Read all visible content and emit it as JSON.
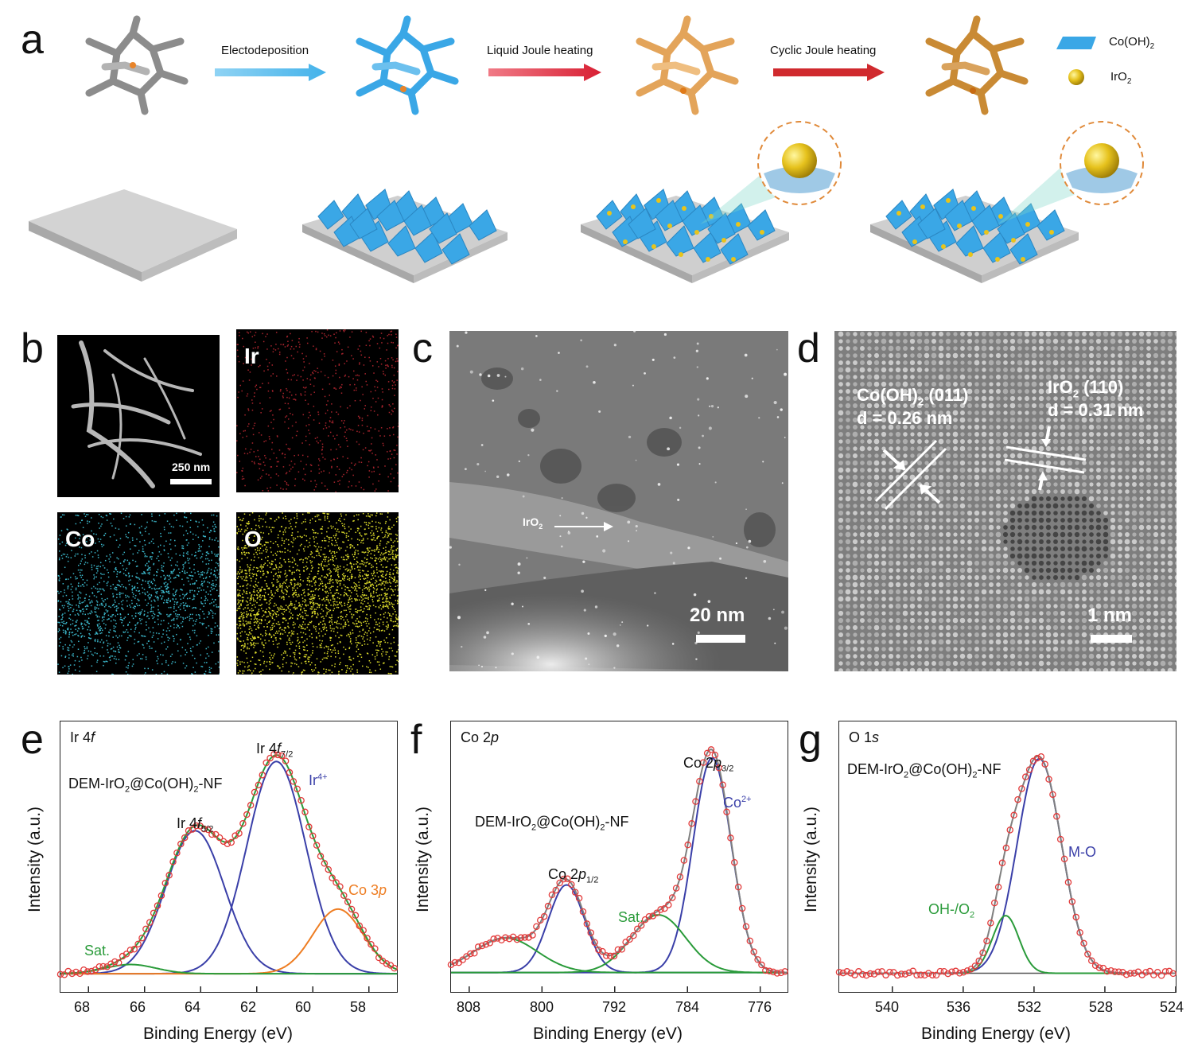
{
  "panels": {
    "a": "a",
    "b": "b",
    "c": "c",
    "d": "d",
    "e": "e",
    "f": "f",
    "g": "g"
  },
  "scheme": {
    "steps": [
      "Electodeposition",
      "Liquid Joule heating",
      "Cyclic Joule heating"
    ],
    "legend_cooh": "Co(OH)",
    "legend_cooh_sub": "2",
    "legend_iro2": "IrO",
    "legend_iro2_sub": "2"
  },
  "eds": {
    "scale": "250 nm",
    "ir": "Ir",
    "co": "Co",
    "o": "O"
  },
  "stem": {
    "label": "IrO",
    "label_sub": "2",
    "scale": "20 nm"
  },
  "hrtem": {
    "cooh_label": "Co(OH)",
    "cooh_sub": "2",
    "cooh_plane": " (011)",
    "cooh_d": "d = 0.26 nm",
    "iro2_label": "IrO",
    "iro2_sub": "2",
    "iro2_plane": " (110)",
    "iro2_d": "d = 0.31 nm",
    "scale": "1 nm"
  },
  "colors": {
    "data": "#e23a3a",
    "fit": "#7f7f7f",
    "envelope": "#2a9b3a",
    "ir4": "#3a3fa8",
    "co3p": "#ee7d22",
    "sat": "#2a9b3a",
    "cooh_blue": "#3aa7e6",
    "ir_map": "#a8242d",
    "co_map": "#3bb6c9",
    "o_map": "#d9d82a"
  },
  "xps": [
    {
      "id": "e",
      "title": "Ir 4",
      "title_ital": "f",
      "sample": "DEM-IrO",
      "sample_sub": "2",
      "sample_mid": "@Co(OH)",
      "sample_sub2": "2",
      "sample_end": "-NF",
      "ylabel": "Intensity (a.u.)",
      "xlabel": "Binding Energy (eV)",
      "xticks": [
        "68",
        "66",
        "64",
        "62",
        "60",
        "58"
      ],
      "peaks": {
        "p1": "Ir 4",
        "p1_i": "f",
        "p1_sub": "5/2",
        "p2": "Ir 4",
        "p2_i": "f",
        "p2_sub": "7/2",
        "ir4": "Ir",
        "ir4_sup": "4+",
        "co3p": "Co 3",
        "co3p_i": "p",
        "sat": "Sat."
      }
    },
    {
      "id": "f",
      "title": "Co 2",
      "title_ital": "p",
      "sample": "DEM-IrO",
      "sample_sub": "2",
      "sample_mid": "@Co(OH)",
      "sample_sub2": "2",
      "sample_end": "-NF",
      "ylabel": "Intensity (a.u.)",
      "xlabel": "Binding Energy (eV)",
      "xticks": [
        "808",
        "800",
        "792",
        "784",
        "776"
      ],
      "peaks": {
        "p1": "Co 2",
        "p1_i": "p",
        "p1_sub": "1/2",
        "p2": "Co 2",
        "p2_i": "p",
        "p2_sub": "3/2",
        "co2": "Co",
        "co2_sup": "2+",
        "sat": "Sat."
      }
    },
    {
      "id": "g",
      "title": "O 1",
      "title_ital": "s",
      "sample": "DEM-IrO",
      "sample_sub": "2",
      "sample_mid": "@Co(OH)",
      "sample_sub2": "2",
      "sample_end": "-NF",
      "ylabel": "Intensity (a.u.)",
      "xlabel": "Binding Energy (eV)",
      "xticks": [
        "540",
        "536",
        "532",
        "528",
        "524"
      ],
      "peaks": {
        "mo": "M-O",
        "oh": "OH-/O",
        "oh_sub": "2"
      }
    }
  ],
  "chart_data": [
    {
      "type": "line",
      "title": "Ir 4f",
      "xlabel": "Binding Energy (eV)",
      "ylabel": "Intensity (a.u.)",
      "xlim": [
        69,
        57
      ],
      "series": [
        {
          "name": "Ir 4f5/2",
          "center": 64.2,
          "height": 0.62,
          "width": 1.05
        },
        {
          "name": "Ir 4f7/2",
          "center": 61.3,
          "height": 0.92,
          "width": 1.05
        },
        {
          "name": "Co 3p",
          "center": 59.1,
          "height": 0.28,
          "width": 0.9
        },
        {
          "name": "Sat.",
          "center": 66.5,
          "height": 0.04,
          "width": 0.9
        }
      ]
    },
    {
      "type": "line",
      "title": "Co 2p",
      "xlabel": "Binding Energy (eV)",
      "ylabel": "Intensity (a.u.)",
      "xlim": [
        810,
        773
      ],
      "series": [
        {
          "name": "Co 2p1/2",
          "center": 797.3,
          "height": 0.38,
          "width": 2.0
        },
        {
          "name": "Co 2p3/2",
          "center": 781.3,
          "height": 0.93,
          "width": 2.1
        },
        {
          "name": "Sat.",
          "center": 787.2,
          "height": 0.25,
          "width": 3.0
        },
        {
          "name": "Sat.",
          "center": 804.0,
          "height": 0.15,
          "width": 3.5
        }
      ]
    },
    {
      "type": "line",
      "title": "O 1s",
      "xlabel": "Binding Energy (eV)",
      "ylabel": "Intensity (a.u.)",
      "xlim": [
        543,
        524
      ],
      "series": [
        {
          "name": "M-O",
          "center": 531.7,
          "height": 0.93,
          "width": 1.25
        },
        {
          "name": "OH-/O2",
          "center": 533.6,
          "height": 0.25,
          "width": 0.75
        }
      ]
    }
  ]
}
